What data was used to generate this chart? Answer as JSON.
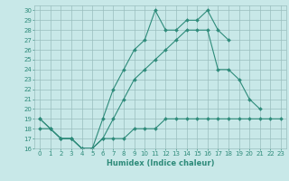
{
  "title": "",
  "xlabel": "Humidex (Indice chaleur)",
  "x": [
    0,
    1,
    2,
    3,
    4,
    5,
    6,
    7,
    8,
    9,
    10,
    11,
    12,
    13,
    14,
    15,
    16,
    17,
    18,
    19,
    20,
    21,
    22,
    23
  ],
  "line1": [
    19,
    18,
    17,
    17,
    16,
    16,
    19,
    22,
    24,
    26,
    27,
    30,
    28,
    28,
    29,
    29,
    30,
    28,
    27,
    null,
    null,
    null,
    null,
    null
  ],
  "line2": [
    19,
    18,
    17,
    17,
    16,
    16,
    17,
    19,
    21,
    23,
    24,
    25,
    26,
    27,
    28,
    28,
    28,
    24,
    24,
    23,
    21,
    20,
    null,
    null
  ],
  "line3": [
    18,
    18,
    17,
    17,
    16,
    16,
    17,
    17,
    17,
    18,
    18,
    18,
    19,
    19,
    19,
    19,
    19,
    19,
    19,
    19,
    19,
    19,
    19,
    19
  ],
  "color": "#2e8b7a",
  "bg_color": "#c8e8e8",
  "grid_color": "#9abebe",
  "ylim": [
    16,
    30
  ],
  "xlim": [
    -0.5,
    23.5
  ],
  "yticks": [
    16,
    17,
    18,
    19,
    20,
    21,
    22,
    23,
    24,
    25,
    26,
    27,
    28,
    29,
    30
  ],
  "xticks": [
    0,
    1,
    2,
    3,
    4,
    5,
    6,
    7,
    8,
    9,
    10,
    11,
    12,
    13,
    14,
    15,
    16,
    17,
    18,
    19,
    20,
    21,
    22,
    23
  ],
  "tick_fontsize": 5,
  "label_fontsize": 6
}
